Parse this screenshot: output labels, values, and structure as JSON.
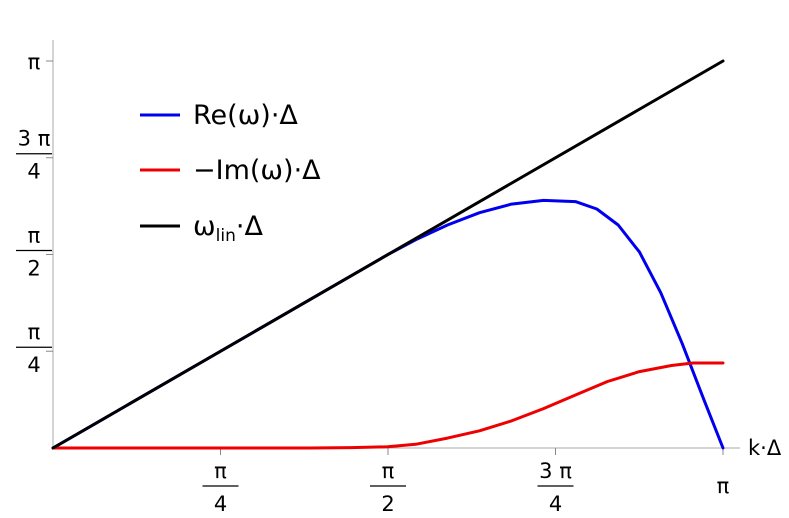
{
  "chart_data": {
    "type": "line",
    "xlabel": "k·Δ",
    "ylabel": "",
    "xlim": [
      0,
      3.14159
    ],
    "ylim": [
      0,
      3.14159
    ],
    "grid": false,
    "legend_position": "top-left",
    "x_ticks": [
      {
        "value": 0.785398,
        "num": "π",
        "den": "4"
      },
      {
        "value": 1.570796,
        "num": "π",
        "den": "2"
      },
      {
        "value": 2.356194,
        "num": "3 π",
        "den": "4"
      },
      {
        "value": 3.141593,
        "label": "π"
      }
    ],
    "y_ticks": [
      {
        "value": 0.785398,
        "num": "π",
        "den": "4"
      },
      {
        "value": 1.570796,
        "num": "π",
        "den": "2"
      },
      {
        "value": 2.356194,
        "num": "3 π",
        "den": "4"
      },
      {
        "value": 3.141593,
        "label": "π"
      }
    ],
    "series": [
      {
        "name": "Re(ω)·Δ",
        "color": "#0000ee",
        "points": [
          [
            0,
            0
          ],
          [
            0.2,
            0.2
          ],
          [
            0.4,
            0.4
          ],
          [
            0.6,
            0.6
          ],
          [
            0.8,
            0.8
          ],
          [
            1.0,
            1.0
          ],
          [
            1.2,
            1.2
          ],
          [
            1.4,
            1.4
          ],
          [
            1.57,
            1.57
          ],
          [
            1.7,
            1.69
          ],
          [
            1.85,
            1.81
          ],
          [
            2.0,
            1.91
          ],
          [
            2.15,
            1.98
          ],
          [
            2.3,
            2.01
          ],
          [
            2.45,
            2.0
          ],
          [
            2.55,
            1.94
          ],
          [
            2.65,
            1.81
          ],
          [
            2.75,
            1.59
          ],
          [
            2.85,
            1.26
          ],
          [
            2.95,
            0.85
          ],
          [
            3.05,
            0.4
          ],
          [
            3.14159,
            0.0
          ]
        ]
      },
      {
        "name": "−Im(ω)·Δ",
        "color": "#ee0000",
        "points": [
          [
            0,
            0
          ],
          [
            0.4,
            0
          ],
          [
            0.8,
            0
          ],
          [
            1.2,
            0
          ],
          [
            1.4,
            0.003
          ],
          [
            1.57,
            0.01
          ],
          [
            1.7,
            0.03
          ],
          [
            1.85,
            0.08
          ],
          [
            2.0,
            0.14
          ],
          [
            2.15,
            0.22
          ],
          [
            2.3,
            0.32
          ],
          [
            2.45,
            0.43
          ],
          [
            2.6,
            0.54
          ],
          [
            2.75,
            0.62
          ],
          [
            2.9,
            0.67
          ],
          [
            3.0,
            0.69
          ],
          [
            3.14159,
            0.69
          ]
        ]
      },
      {
        "name": "ωlin·Δ",
        "color": "#000000",
        "points": [
          [
            0,
            0
          ],
          [
            3.14159,
            3.14159
          ]
        ]
      }
    ]
  },
  "legend": {
    "items": [
      {
        "text": "Re(ω)·Δ",
        "color": "#0000ee"
      },
      {
        "text": "−Im(ω)·Δ",
        "color": "#ee0000"
      },
      {
        "main": "ω",
        "sub": "lin",
        "rest": "·Δ",
        "color": "#000000"
      }
    ]
  }
}
